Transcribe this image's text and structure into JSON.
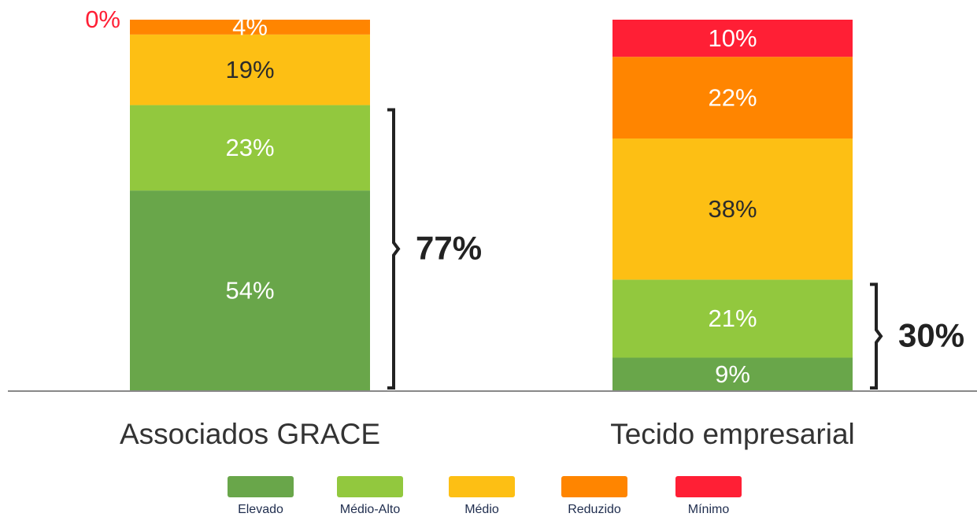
{
  "chart_data": {
    "type": "stacked_bar",
    "categories": [
      "Associados GRACE",
      "Tecido empresarial"
    ],
    "ylim": [
      0,
      100
    ],
    "series": [
      {
        "name": "Elevado",
        "color": "#69a64a",
        "label_color": "#ffffff",
        "values": [
          54,
          9
        ],
        "value_labels": [
          "54%",
          "9%"
        ]
      },
      {
        "name": "Médio-Alto",
        "color": "#92c83e",
        "label_color": "#ffffff",
        "values": [
          23,
          21
        ],
        "value_labels": [
          "23%",
          "21%"
        ]
      },
      {
        "name": "Médio",
        "color": "#fdbf14",
        "label_color": "#2b2b2b",
        "values": [
          19,
          38
        ],
        "value_labels": [
          "19%",
          "38%"
        ]
      },
      {
        "name": "Reduzido",
        "color": "#ff8500",
        "label_color": "#ffffff",
        "values": [
          4,
          22
        ],
        "value_labels": [
          "4%",
          "22%"
        ]
      },
      {
        "name": "Mínimo",
        "color": "#ff1f35",
        "label_color": "#ffffff",
        "values": [
          0,
          10
        ],
        "value_labels": [
          "0%",
          "10%"
        ]
      }
    ],
    "annotations": [
      {
        "value": 77,
        "label": "77%"
      },
      {
        "value": 30,
        "label": "30%"
      }
    ]
  }
}
